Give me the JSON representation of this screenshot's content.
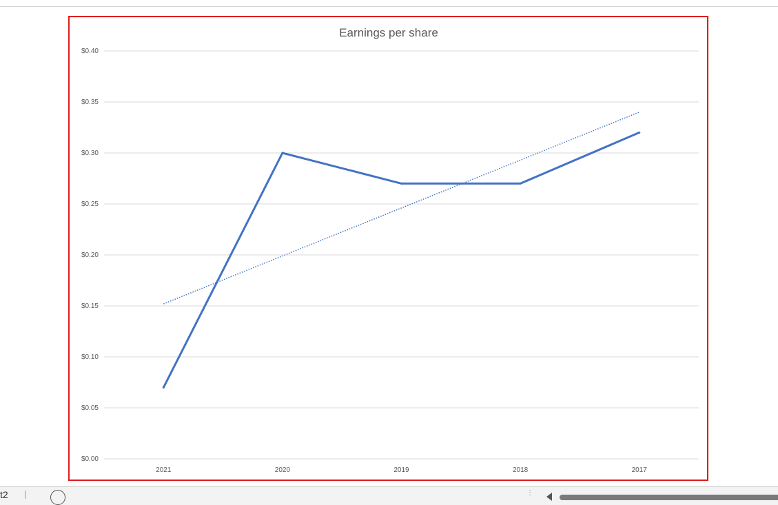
{
  "sheet_tab": {
    "label_fragment": "t2"
  },
  "chart_data": {
    "type": "line",
    "title": "Earnings per share",
    "categories": [
      "2021",
      "2020",
      "2019",
      "2018",
      "2017"
    ],
    "series": [
      {
        "values": [
          0.07,
          0.3,
          0.27,
          0.27,
          0.32
        ],
        "color": "#4472c4",
        "style": "solid"
      }
    ],
    "trendline": {
      "type": "linear",
      "start": 0.152,
      "end": 0.34,
      "color": "#4472c4",
      "style": "dotted"
    },
    "ylim": [
      0,
      0.4
    ],
    "yticks": [
      0.0,
      0.05,
      0.1,
      0.15,
      0.2,
      0.25,
      0.3,
      0.35,
      0.4
    ],
    "ytick_labels": [
      "$0.00",
      "$0.05",
      "$0.10",
      "$0.15",
      "$0.20",
      "$0.25",
      "$0.30",
      "$0.35",
      "$0.40"
    ],
    "xlabel": "",
    "ylabel": "",
    "grid": true,
    "legend": "none",
    "border_color": "#e01c1c"
  }
}
